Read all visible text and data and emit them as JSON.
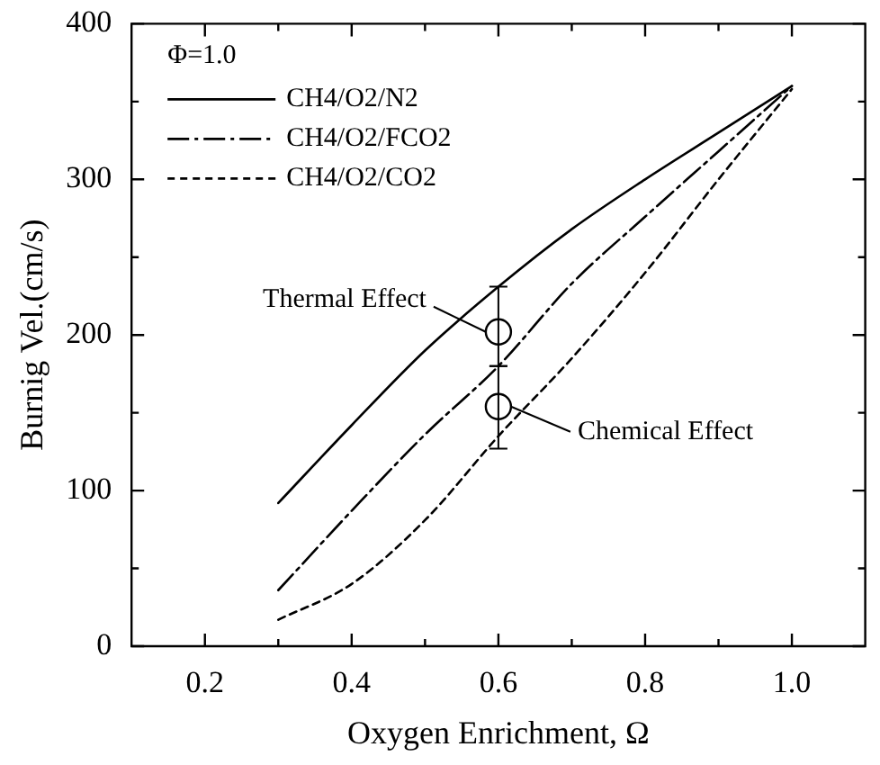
{
  "chart_data": {
    "type": "line",
    "xlabel": "Oxygen Enrichment, Ω",
    "ylabel": "Burnig Vel.(cm/s)",
    "legend_title": "Φ=1.0",
    "legend": "top left",
    "x": [
      0.3,
      0.4,
      0.5,
      0.6,
      0.7,
      0.8,
      0.9,
      1.0
    ],
    "series": [
      {
        "name": "CH4/O2/N2",
        "color": "#000000",
        "line_style": "solid",
        "values": [
          92,
          142,
          190,
          231,
          268,
          300,
          330,
          360
        ]
      },
      {
        "name": "CH4/O2/FCO2",
        "color": "#000000",
        "line_style": "dashdot",
        "values": [
          36,
          87,
          136,
          180,
          233,
          276,
          318,
          360
        ]
      },
      {
        "name": "CH4/O2/CO2",
        "color": "#000000",
        "line_style": "dashed",
        "values": [
          17,
          40,
          81,
          135,
          185,
          240,
          300,
          358
        ]
      },
      {
        "type": "scatter",
        "marker": "circle",
        "color": "#000000",
        "x": [
          0.6,
          0.6
        ],
        "values": [
          202,
          154
        ],
        "errors": [
          [
            180,
            231
          ],
          [
            127,
            180
          ]
        ]
      }
    ],
    "xlim": [
      0.1,
      1.1
    ],
    "xticks": [
      {
        "value": 0.2,
        "label": "0.2"
      },
      {
        "value": 0.3,
        "label": null
      },
      {
        "value": 0.4,
        "label": "0.4"
      },
      {
        "value": 0.5,
        "label": null
      },
      {
        "value": 0.6,
        "label": "0.6"
      },
      {
        "value": 0.7,
        "label": null
      },
      {
        "value": 0.8,
        "label": "0.8"
      },
      {
        "value": 0.9,
        "label": null
      },
      {
        "value": 1.0,
        "label": "1.0"
      }
    ],
    "ylim": [
      0,
      400
    ],
    "yticks": [
      0,
      {
        "value": 50,
        "label": null
      },
      100,
      {
        "value": 150,
        "label": null
      },
      200,
      {
        "value": 250,
        "label": null
      },
      300,
      {
        "value": 350,
        "label": null
      },
      400
    ],
    "grid": false,
    "annotations": [
      {
        "text": "Thermal Effect",
        "x": 0.6,
        "y": 202
      },
      {
        "text": "Chemical Effect",
        "x": 0.6,
        "y": 154
      }
    ]
  }
}
